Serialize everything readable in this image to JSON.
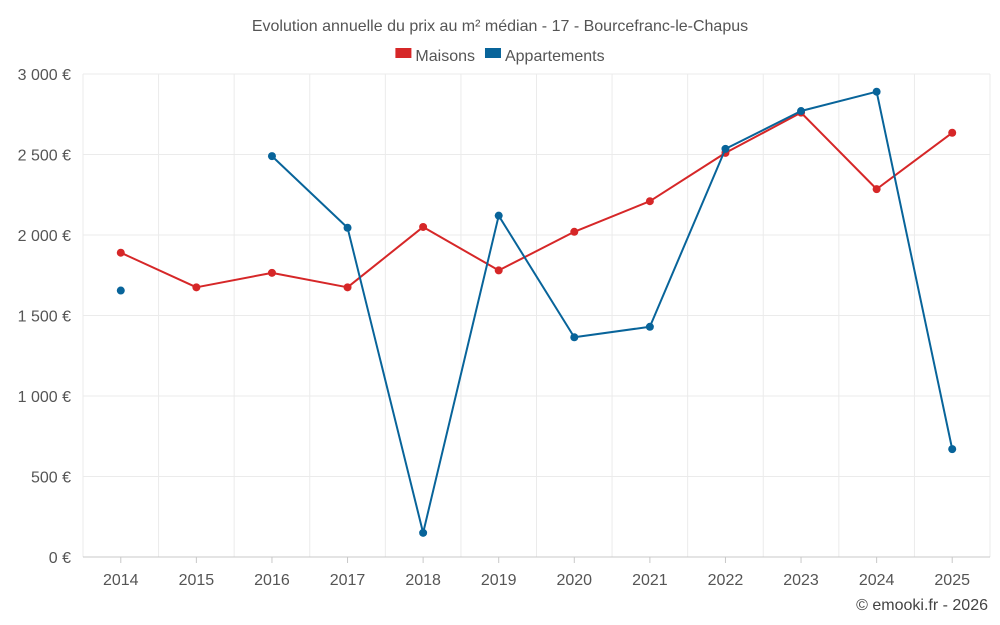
{
  "chart_data": {
    "type": "line",
    "title": "Evolution annuelle du prix au m² médian - 17 - Bourcefranc-le-Chapus",
    "categories": [
      "2014",
      "2015",
      "2016",
      "2017",
      "2018",
      "2019",
      "2020",
      "2021",
      "2022",
      "2023",
      "2024",
      "2025"
    ],
    "ylim": [
      0,
      3000
    ],
    "yticks": [
      0,
      500,
      1000,
      1500,
      2000,
      2500,
      3000
    ],
    "ytick_labels": [
      "0 €",
      "500 €",
      "1 000 €",
      "1 500 €",
      "2 000 €",
      "2 500 €",
      "3 000 €"
    ],
    "grid": true,
    "legend_position": "top-center",
    "series": [
      {
        "name": "Maisons",
        "color": "#d62728",
        "values": [
          1890,
          1675,
          1765,
          1675,
          2050,
          1780,
          2020,
          2210,
          2510,
          2760,
          2285,
          2635
        ]
      },
      {
        "name": "Appartements",
        "color": "#08649a",
        "values": [
          1655,
          null,
          2490,
          2045,
          150,
          2120,
          1365,
          1430,
          2535,
          2770,
          2890,
          670
        ]
      }
    ],
    "credit": "© emooki.fr - 2026"
  }
}
